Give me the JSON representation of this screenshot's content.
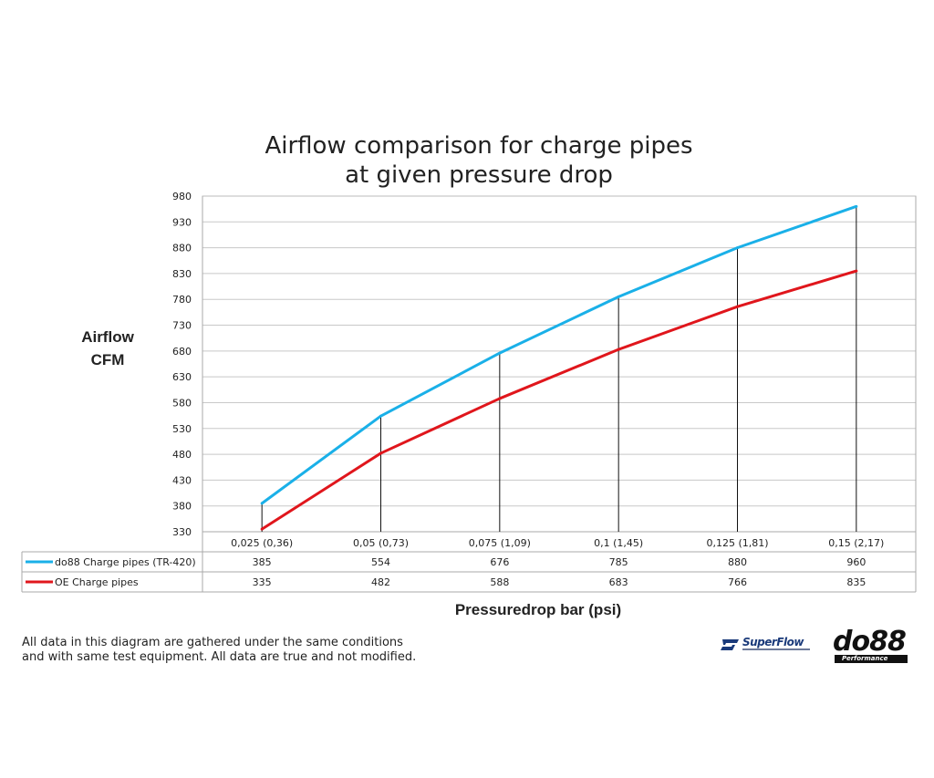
{
  "chart_data": {
    "type": "line",
    "title": [
      "Airflow comparison for charge pipes",
      "at given pressure drop"
    ],
    "ylabel": [
      "Airflow",
      "CFM"
    ],
    "xlabel": "Pressuredrop bar (psi)",
    "ylim": [
      330,
      980
    ],
    "yticks": [
      330,
      380,
      430,
      480,
      530,
      580,
      630,
      680,
      730,
      780,
      830,
      880,
      930,
      980
    ],
    "categories": [
      "0,025 (0,36)",
      "0,05 (0,73)",
      "0,075 (1,09)",
      "0,1 (1,45)",
      "0,125 (1,81)",
      "0,15 (2,17)"
    ],
    "series": [
      {
        "name": "do88 Charge pipes (TR-420)",
        "color": "#1ab0e8",
        "values": [
          385,
          554,
          676,
          785,
          880,
          960
        ],
        "labels": [
          "385",
          "554",
          "676",
          "785",
          "880",
          "960"
        ]
      },
      {
        "name": "OE Charge pipes",
        "color": "#e0161c",
        "values": [
          335,
          482,
          588,
          683,
          766,
          835
        ],
        "labels": [
          "335",
          "482",
          "588",
          "683",
          "766",
          "835"
        ]
      }
    ],
    "grid": true,
    "legend": "data-table below x-axis"
  },
  "footnote": [
    "All data in this diagram are gathered under the same conditions",
    "and with same test equipment. All data are true and not modified."
  ],
  "logos": {
    "superflow": {
      "text": "SuperFlow",
      "color": "#1a3a7a"
    },
    "do88": {
      "text": "do88",
      "subtext": "Performance"
    }
  }
}
